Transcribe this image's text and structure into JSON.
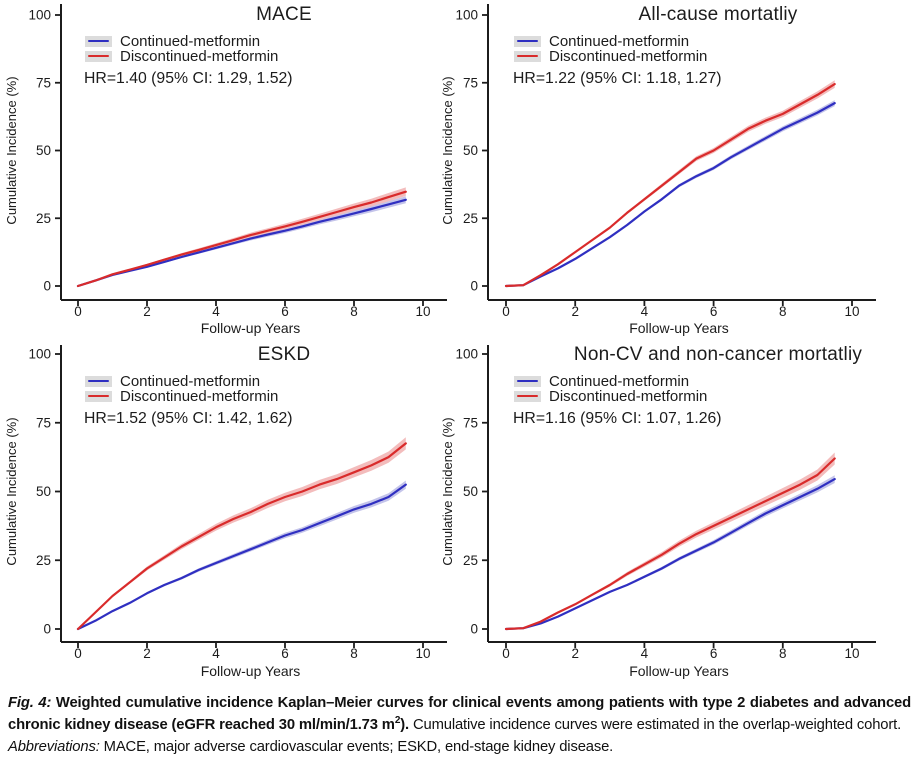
{
  "colors": {
    "ink": "#1c1c1c",
    "continued_line": "#2f2fc1",
    "discontinued_line": "#d92b2b",
    "continued_band": "#c4c4ea",
    "discontinued_band": "#f3bcbc",
    "legend_key_bg": "#dcdcdc",
    "background": "#ffffff"
  },
  "chart_data": [
    {
      "type": "line",
      "title": "MACE",
      "xlabel": "Follow-up Years",
      "ylabel": "Cumulative Incidence (%)",
      "xlim": [
        0,
        10
      ],
      "ylim": [
        0,
        100
      ],
      "xticks": [
        0,
        2,
        4,
        6,
        8,
        10
      ],
      "yticks": [
        0,
        25,
        50,
        75,
        100
      ],
      "grid": false,
      "legend_position": "top-left-inside",
      "hr_label": "HR=1.40 (95% CI: 1.29, 1.52)",
      "series": [
        {
          "name": "Continued-metformin",
          "color": "#2f2fc1",
          "band_color": "#c4c4ea",
          "ci_halfwidth_end": 1.3,
          "x": [
            0,
            0.5,
            1,
            1.5,
            2,
            2.5,
            3,
            3.5,
            4,
            4.5,
            5,
            5.5,
            6,
            6.5,
            7,
            7.5,
            8,
            8.5,
            9,
            9.5
          ],
          "y": [
            0,
            2,
            4.1,
            5.6,
            7.1,
            8.9,
            10.7,
            12.4,
            14.1,
            15.8,
            17.5,
            19,
            20.4,
            22,
            23.7,
            25.2,
            26.8,
            28.4,
            30.1,
            31.8
          ]
        },
        {
          "name": "Discontinued-metformin",
          "color": "#d92b2b",
          "band_color": "#f3bcbc",
          "ci_halfwidth_end": 1.6,
          "x": [
            0,
            0.5,
            1,
            1.5,
            2,
            2.5,
            3,
            3.5,
            4,
            4.5,
            5,
            5.5,
            6,
            6.5,
            7,
            7.5,
            8,
            8.5,
            9,
            9.5
          ],
          "y": [
            0,
            2,
            4.3,
            6,
            7.8,
            9.7,
            11.6,
            13.3,
            15.1,
            16.9,
            18.8,
            20.4,
            22,
            23.7,
            25.5,
            27.3,
            29.1,
            30.8,
            32.8,
            34.8
          ]
        }
      ]
    },
    {
      "type": "line",
      "title": "All-cause mortatliy",
      "xlabel": "Follow-up Years",
      "ylabel": "Cumulative Incidence (%)",
      "xlim": [
        0,
        10
      ],
      "ylim": [
        0,
        100
      ],
      "xticks": [
        0,
        2,
        4,
        6,
        8,
        10
      ],
      "yticks": [
        0,
        25,
        50,
        75,
        100
      ],
      "grid": false,
      "legend_position": "top-left-inside",
      "hr_label": "HR=1.22 (95% CI: 1.18, 1.27)",
      "series": [
        {
          "name": "Continued-metformin",
          "color": "#2f2fc1",
          "band_color": "#c4c4ea",
          "ci_halfwidth_end": 1.1,
          "x": [
            0,
            0.5,
            1,
            1.5,
            2,
            2.5,
            3,
            3.5,
            4,
            4.5,
            5,
            5.5,
            6,
            6.5,
            7,
            7.5,
            8,
            8.5,
            9,
            9.5
          ],
          "y": [
            0,
            0.3,
            3.5,
            6.5,
            10,
            14,
            18,
            22.5,
            27.5,
            32,
            37,
            40.5,
            43.5,
            47.5,
            51,
            54.5,
            58,
            61,
            64,
            67.5
          ]
        },
        {
          "name": "Discontinued-metformin",
          "color": "#d92b2b",
          "band_color": "#f3bcbc",
          "ci_halfwidth_end": 1.4,
          "x": [
            0,
            0.5,
            1,
            1.5,
            2,
            2.5,
            3,
            3.5,
            4,
            4.5,
            5,
            5.5,
            6,
            6.5,
            7,
            7.5,
            8,
            8.5,
            9,
            9.5
          ],
          "y": [
            0,
            0.3,
            4,
            8,
            12.5,
            17,
            21.5,
            27,
            32,
            37,
            42,
            47,
            50,
            54,
            58,
            61,
            63.5,
            67,
            70.5,
            74.5
          ]
        }
      ]
    },
    {
      "type": "line",
      "title": "ESKD",
      "xlabel": "Follow-up Years",
      "ylabel": "Cumulative Incidence (%)",
      "xlim": [
        0,
        10
      ],
      "ylim": [
        0,
        100
      ],
      "xticks": [
        0,
        2,
        4,
        6,
        8,
        10
      ],
      "yticks": [
        0,
        25,
        50,
        75,
        100
      ],
      "grid": false,
      "legend_position": "top-left-inside",
      "hr_label": "HR=1.52 (95% CI: 1.42, 1.62)",
      "series": [
        {
          "name": "Continued-metformin",
          "color": "#2f2fc1",
          "band_color": "#c4c4ea",
          "ci_halfwidth_end": 1.5,
          "x": [
            0,
            0.5,
            1,
            1.5,
            2,
            2.5,
            3,
            3.5,
            4,
            4.5,
            5,
            5.5,
            6,
            6.5,
            7,
            7.5,
            8,
            8.5,
            9,
            9.5
          ],
          "y": [
            0,
            3,
            6.5,
            9.5,
            13,
            16,
            18.5,
            21.5,
            24,
            26.5,
            29,
            31.5,
            34,
            36,
            38.5,
            41,
            43.5,
            45.5,
            48,
            52.5
          ]
        },
        {
          "name": "Discontinued-metformin",
          "color": "#d92b2b",
          "band_color": "#f3bcbc",
          "ci_halfwidth_end": 2.2,
          "x": [
            0,
            0.5,
            1,
            1.5,
            2,
            2.5,
            3,
            3.5,
            4,
            4.5,
            5,
            5.5,
            6,
            6.5,
            7,
            7.5,
            8,
            8.5,
            9,
            9.5
          ],
          "y": [
            0,
            6,
            12,
            17,
            22,
            26,
            30,
            33.5,
            37,
            40,
            42.5,
            45.5,
            48,
            50,
            52.5,
            54.5,
            57,
            59.5,
            62.5,
            67.5
          ]
        }
      ]
    },
    {
      "type": "line",
      "title": "Non-CV and non-cancer mortatliy",
      "xlabel": "Follow-up Years",
      "ylabel": "Cumulative Incidence (%)",
      "xlim": [
        0,
        10
      ],
      "ylim": [
        0,
        100
      ],
      "xticks": [
        0,
        2,
        4,
        6,
        8,
        10
      ],
      "yticks": [
        0,
        25,
        50,
        75,
        100
      ],
      "grid": false,
      "legend_position": "top-left-inside",
      "hr_label": "HR=1.16 (95% CI: 1.07, 1.26)",
      "series": [
        {
          "name": "Continued-metformin",
          "color": "#2f2fc1",
          "band_color": "#c4c4ea",
          "ci_halfwidth_end": 1.4,
          "x": [
            0,
            0.5,
            1,
            1.5,
            2,
            2.5,
            3,
            3.5,
            4,
            4.5,
            5,
            5.5,
            6,
            6.5,
            7,
            7.5,
            8,
            8.5,
            9,
            9.5
          ],
          "y": [
            0,
            0.3,
            2,
            4.5,
            7.5,
            10.5,
            13.5,
            16,
            19,
            22,
            25.5,
            28.5,
            31.5,
            35,
            38.5,
            42,
            45,
            48,
            51,
            54.5
          ]
        },
        {
          "name": "Discontinued-metformin",
          "color": "#d92b2b",
          "band_color": "#f3bcbc",
          "ci_halfwidth_end": 2.2,
          "x": [
            0,
            0.5,
            1,
            1.5,
            2,
            2.5,
            3,
            3.5,
            4,
            4.5,
            5,
            5.5,
            6,
            6.5,
            7,
            7.5,
            8,
            8.5,
            9,
            9.5
          ],
          "y": [
            0,
            0.3,
            2.7,
            6,
            9,
            12.5,
            16,
            20,
            23.5,
            27,
            31,
            34.5,
            37.5,
            40.5,
            43.5,
            46.5,
            49.5,
            52.5,
            56,
            62
          ]
        }
      ]
    }
  ],
  "caption": {
    "fig_label": "Fig. 4:",
    "bold_text": "Weighted cumulative incidence Kaplan–Meier curves for clinical events among patients with type 2 diabetes and advanced chronic kidney disease (eGFR reached 30 ml/min/1.73 m",
    "superscript": "2",
    "bold_tail": ").",
    "normal_text": "Cumulative incidence curves were estimated in the overlap-weighted cohort.",
    "abbreviations_label": "Abbreviations:",
    "abbreviations_text": "MACE, major adverse cardiovascular events; ESKD, end-stage kidney disease."
  }
}
